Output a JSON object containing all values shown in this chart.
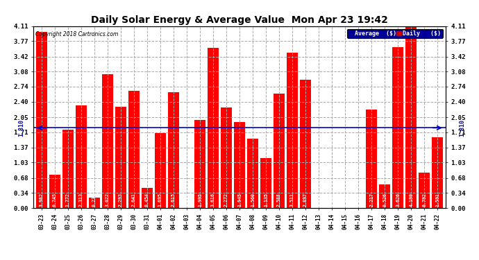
{
  "title": "Daily Solar Energy & Average Value  Mon Apr 23 19:42",
  "copyright": "Copyright 2018 Cartronics.com",
  "categories": [
    "03-23",
    "03-24",
    "03-25",
    "03-26",
    "03-27",
    "03-28",
    "03-29",
    "03-30",
    "03-31",
    "04-01",
    "04-02",
    "04-03",
    "04-04",
    "04-05",
    "04-06",
    "04-07",
    "04-08",
    "04-09",
    "04-10",
    "04-11",
    "04-12",
    "04-13",
    "04-14",
    "04-15",
    "04-16",
    "04-17",
    "04-18",
    "04-19",
    "04-20",
    "04-21",
    "04-22"
  ],
  "values": [
    3.982,
    0.745,
    1.772,
    2.313,
    0.238,
    3.022,
    2.293,
    2.641,
    0.454,
    1.695,
    2.615,
    0.0,
    1.995,
    3.616,
    2.272,
    1.945,
    1.56,
    1.135,
    2.588,
    3.511,
    2.897,
    0.0,
    0.0,
    0.0,
    0.0,
    2.217,
    0.526,
    3.626,
    4.199,
    0.792,
    1.591
  ],
  "average_value": 1.81,
  "bar_color": "#ff0000",
  "avg_line_color": "#0000cc",
  "background_color": "#ffffff",
  "grid_color": "#aaaaaa",
  "ylim": [
    0.0,
    4.11
  ],
  "yticks": [
    0.0,
    0.34,
    0.68,
    1.03,
    1.37,
    1.71,
    2.05,
    2.4,
    2.74,
    3.08,
    3.42,
    3.77,
    4.11
  ],
  "legend_avg_color": "#000099",
  "legend_daily_color": "#cc0000",
  "avg_label": "Average  ($)",
  "daily_label": "Daily   ($)"
}
